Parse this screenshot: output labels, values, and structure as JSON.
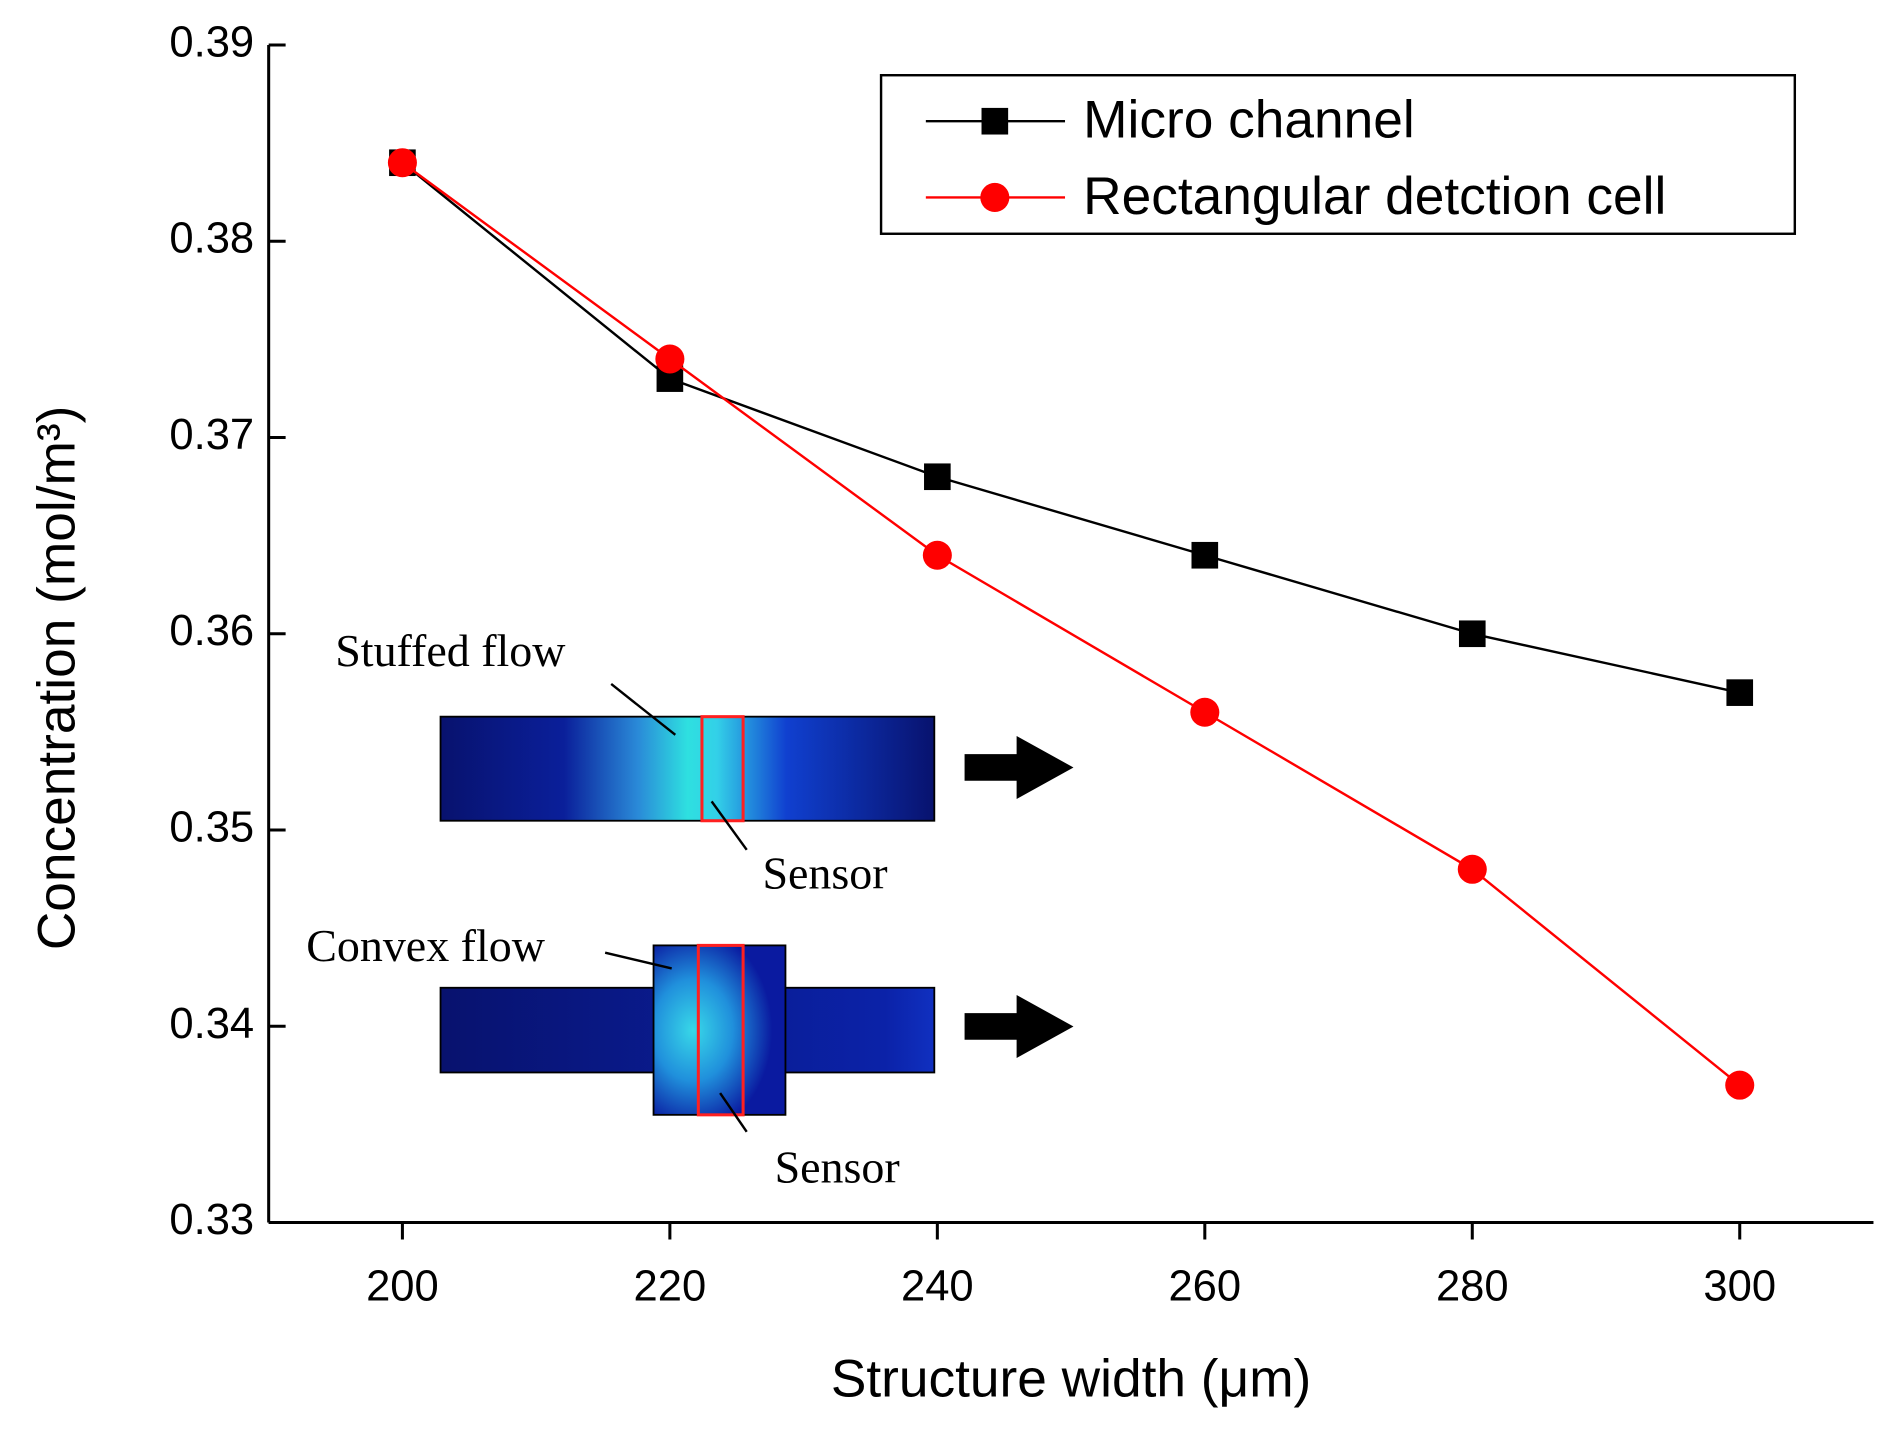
{
  "chart_data": {
    "type": "line",
    "x_label": "Structure width (μm)",
    "y_label": "Concentration (mol/m³)",
    "x": [
      200,
      220,
      240,
      260,
      280,
      300
    ],
    "series": [
      {
        "name": "Micro channel",
        "color": "#000000",
        "marker": "square",
        "values": [
          0.384,
          0.373,
          0.368,
          0.364,
          0.36,
          0.357
        ]
      },
      {
        "name": "Rectangular detction cell",
        "color": "#ff0000",
        "marker": "circle",
        "values": [
          0.384,
          0.374,
          0.364,
          0.356,
          0.348,
          0.337
        ]
      }
    ],
    "xlim": [
      190,
      310
    ],
    "xticks": [
      200,
      220,
      240,
      260,
      280,
      300
    ],
    "ylim": [
      0.33,
      0.39
    ],
    "yticks": [
      0.33,
      0.34,
      0.35,
      0.36,
      0.37,
      0.38,
      0.39
    ],
    "legend": "upper right",
    "annotations": [
      "Stuffed flow",
      "Sensor",
      "Convex flow",
      "Sensor"
    ]
  }
}
